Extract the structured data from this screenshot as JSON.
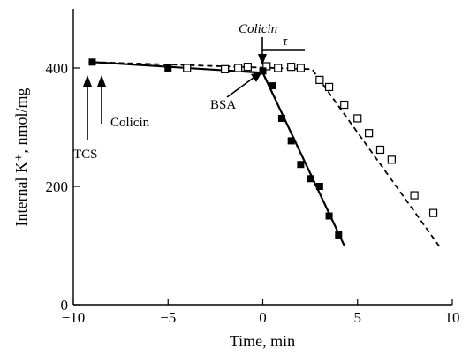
{
  "chart_data": {
    "type": "scatter",
    "xlabel": "Time, min",
    "ylabel": "Internal K⁺, nmol/mg",
    "xlim": [
      -10,
      10
    ],
    "ylim": [
      0,
      500
    ],
    "xticks": [
      -10,
      -5,
      0,
      5,
      10
    ],
    "yticks": [
      0,
      200,
      400
    ],
    "xtick_labels": [
      "−10",
      "−5",
      "0",
      "5",
      "10"
    ],
    "ytick_labels": [
      "0",
      "200",
      "400"
    ],
    "grid": false,
    "series": [
      {
        "marker": "filled-square",
        "line": "solid",
        "points": [
          {
            "x": -9,
            "y": 410
          },
          {
            "x": -5,
            "y": 400
          },
          {
            "x": 0,
            "y": 395
          },
          {
            "x": 0.5,
            "y": 370
          },
          {
            "x": 1,
            "y": 315
          },
          {
            "x": 1.5,
            "y": 277
          },
          {
            "x": 2,
            "y": 237
          },
          {
            "x": 2.5,
            "y": 213
          },
          {
            "x": 3,
            "y": 200
          },
          {
            "x": 3.5,
            "y": 150
          },
          {
            "x": 4,
            "y": 118
          }
        ],
        "fit": [
          {
            "x": -9,
            "y": 410
          },
          {
            "x": 0,
            "y": 392
          },
          {
            "x": 4.3,
            "y": 100
          }
        ]
      },
      {
        "marker": "open-square",
        "line": "dashed",
        "points": [
          {
            "x": -4,
            "y": 400
          },
          {
            "x": -2,
            "y": 398
          },
          {
            "x": -1.3,
            "y": 400
          },
          {
            "x": -0.8,
            "y": 402
          },
          {
            "x": 0.2,
            "y": 403
          },
          {
            "x": 0.8,
            "y": 400
          },
          {
            "x": 1.5,
            "y": 402
          },
          {
            "x": 2,
            "y": 400
          },
          {
            "x": 3,
            "y": 380
          },
          {
            "x": 3.5,
            "y": 368
          },
          {
            "x": 4.3,
            "y": 338
          },
          {
            "x": 5,
            "y": 315
          },
          {
            "x": 5.6,
            "y": 290
          },
          {
            "x": 6.2,
            "y": 262
          },
          {
            "x": 6.8,
            "y": 245
          },
          {
            "x": 8,
            "y": 185
          },
          {
            "x": 9,
            "y": 155
          }
        ],
        "fit": [
          {
            "x": -9,
            "y": 410
          },
          {
            "x": 2.6,
            "y": 398
          },
          {
            "x": 9.4,
            "y": 95
          }
        ]
      }
    ],
    "annotations": {
      "tcs": "TCS",
      "colicin_early": "Colicin",
      "bsa": "BSA",
      "colicin_top": "Colicin",
      "tau": "τ"
    }
  }
}
